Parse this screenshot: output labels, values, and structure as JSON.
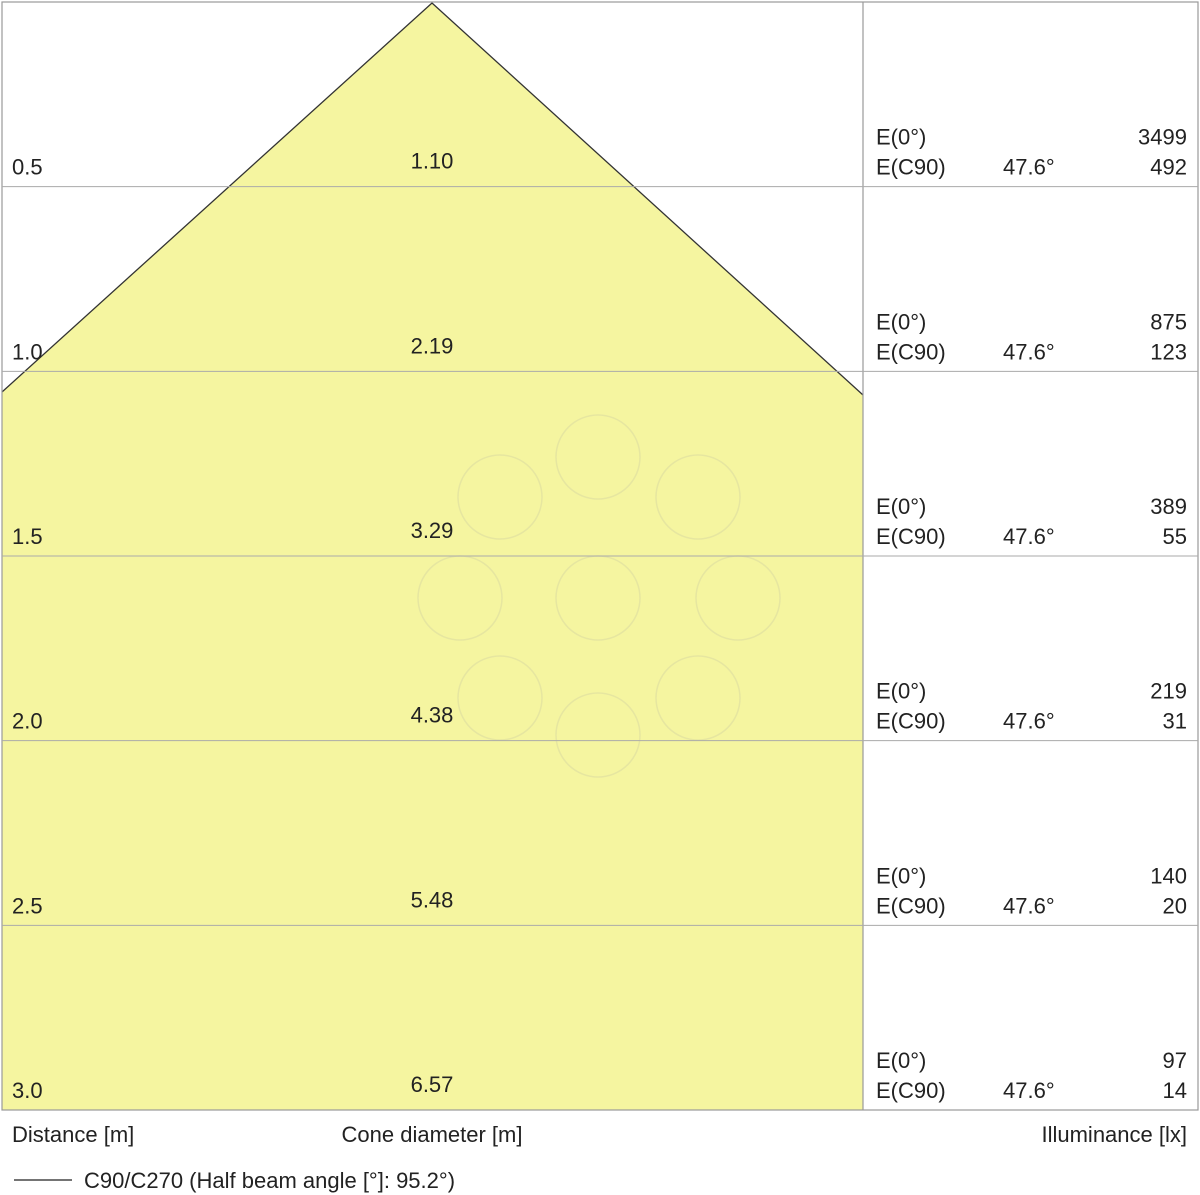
{
  "labels": {
    "distance": "Distance [m]",
    "cone": "Cone diameter [m]",
    "illuminance": "Illuminance [lx]",
    "legend": "C90/C270 (Half beam angle [°]: 95.2°)"
  },
  "rows": [
    {
      "distance": "0.5",
      "diameter": "1.10",
      "e0_label": "E(0°)",
      "e0": "3499",
      "ec90_label": "E(C90)",
      "angle": "47.6°",
      "ec90": "492"
    },
    {
      "distance": "1.0",
      "diameter": "2.19",
      "e0_label": "E(0°)",
      "e0": "875",
      "ec90_label": "E(C90)",
      "angle": "47.6°",
      "ec90": "123"
    },
    {
      "distance": "1.5",
      "diameter": "3.29",
      "e0_label": "E(0°)",
      "e0": "389",
      "ec90_label": "E(C90)",
      "angle": "47.6°",
      "ec90": "55"
    },
    {
      "distance": "2.0",
      "diameter": "4.38",
      "e0_label": "E(0°)",
      "e0": "219",
      "ec90_label": "E(C90)",
      "angle": "47.6°",
      "ec90": "31"
    },
    {
      "distance": "2.5",
      "diameter": "5.48",
      "e0_label": "E(0°)",
      "e0": "140",
      "ec90_label": "E(C90)",
      "angle": "47.6°",
      "ec90": "20"
    },
    {
      "distance": "3.0",
      "diameter": "6.57",
      "e0_label": "E(0°)",
      "e0": "97",
      "ec90_label": "E(C90)",
      "angle": "47.6°",
      "ec90": "14"
    }
  ]
}
